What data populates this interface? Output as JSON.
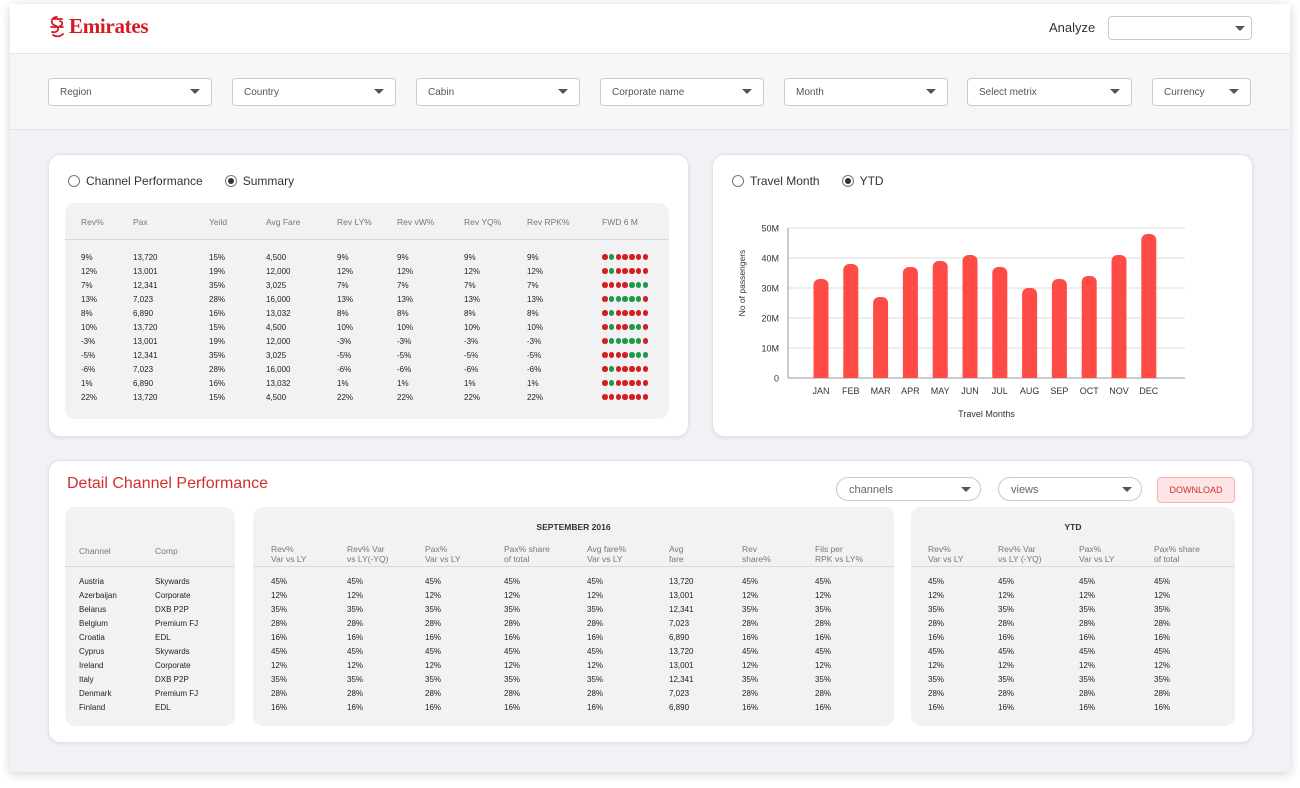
{
  "brand": {
    "name": "Emirates",
    "accent": "#d71920"
  },
  "header": {
    "analyze_label": "Analyze",
    "analyze_value": ""
  },
  "filters": [
    "Region",
    "Country",
    "Cabin",
    "Corporate name",
    "Month",
    "Select metrix",
    "Currency"
  ],
  "summary_card": {
    "radios": [
      {
        "label": "Channel Performance",
        "selected": false
      },
      {
        "label": "Summary",
        "selected": true
      }
    ],
    "columns": [
      "Rev%",
      "Pax",
      "Yeild",
      "Avg Fare",
      "Rev LY%",
      "Rev vW%",
      "Rev YQ%",
      "Rev RPK%",
      "FWD 6 M"
    ],
    "rows": [
      [
        "9%",
        "13,720",
        "15%",
        "4,500",
        "9%",
        "9%",
        "9%",
        "9%"
      ],
      [
        "12%",
        "13,001",
        "19%",
        "12,000",
        "12%",
        "12%",
        "12%",
        "12%"
      ],
      [
        "7%",
        "12,341",
        "35%",
        "3,025",
        "7%",
        "7%",
        "7%",
        "7%"
      ],
      [
        "13%",
        "7,023",
        "28%",
        "16,000",
        "13%",
        "13%",
        "13%",
        "13%"
      ],
      [
        "8%",
        "6,890",
        "16%",
        "13,032",
        "8%",
        "8%",
        "8%",
        "8%"
      ],
      [
        "10%",
        "13,720",
        "15%",
        "4,500",
        "10%",
        "10%",
        "10%",
        "10%"
      ],
      [
        "-3%",
        "13,001",
        "19%",
        "12,000",
        "-3%",
        "-3%",
        "-3%",
        "-3%"
      ],
      [
        "-5%",
        "12,341",
        "35%",
        "3,025",
        "-5%",
        "-5%",
        "-5%",
        "-5%"
      ],
      [
        "-6%",
        "7,023",
        "28%",
        "16,000",
        "-6%",
        "-6%",
        "-6%",
        "-6%"
      ],
      [
        "1%",
        "6,890",
        "16%",
        "13,032",
        "1%",
        "1%",
        "1%",
        "1%"
      ],
      [
        "22%",
        "13,720",
        "15%",
        "4,500",
        "22%",
        "22%",
        "22%",
        "22%"
      ]
    ],
    "fwd_dots": [
      [
        "r",
        "g",
        "r",
        "r",
        "r",
        "r",
        "r"
      ],
      [
        "r",
        "g",
        "r",
        "r",
        "r",
        "r",
        "r"
      ],
      [
        "r",
        "r",
        "r",
        "r",
        "g",
        "g",
        "g"
      ],
      [
        "r",
        "g",
        "g",
        "g",
        "g",
        "g",
        "r"
      ],
      [
        "r",
        "g",
        "r",
        "r",
        "r",
        "r",
        "r"
      ],
      [
        "r",
        "g",
        "r",
        "r",
        "g",
        "g",
        "r"
      ],
      [
        "r",
        "g",
        "g",
        "g",
        "g",
        "g",
        "r"
      ],
      [
        "r",
        "r",
        "r",
        "r",
        "g",
        "g",
        "g"
      ],
      [
        "r",
        "g",
        "r",
        "r",
        "r",
        "r",
        "r"
      ],
      [
        "r",
        "g",
        "r",
        "r",
        "r",
        "r",
        "r"
      ],
      [
        "r",
        "r",
        "r",
        "r",
        "r",
        "r",
        "r"
      ]
    ],
    "dot_colors": {
      "r": "#d32020",
      "g": "#1f9a4a"
    }
  },
  "chart_card": {
    "radios": [
      {
        "label": "Travel Month",
        "selected": false
      },
      {
        "label": "YTD",
        "selected": true
      }
    ]
  },
  "chart_data": {
    "type": "bar",
    "categories": [
      "JAN",
      "FEB",
      "MAR",
      "APR",
      "MAY",
      "JUN",
      "JUL",
      "AUG",
      "SEP",
      "OCT",
      "NOV",
      "DEC"
    ],
    "values": [
      33,
      38,
      27,
      37,
      39,
      41,
      37,
      30,
      33,
      34,
      41,
      48
    ],
    "xlabel": "Travel Months",
    "ylabel": "No of   passengers",
    "ylim": [
      0,
      50
    ],
    "yticks": [
      0,
      10,
      20,
      30,
      40,
      50
    ],
    "ytick_labels": [
      "0",
      "10M",
      "20M",
      "30M",
      "40M",
      "50M"
    ],
    "bar_color": "#ff4b45",
    "grid": true
  },
  "detail": {
    "title": "Detail Channel Performance",
    "channels_placeholder": "channels",
    "views_placeholder": "views",
    "download_label": "DOWNLOAD",
    "left_headers": [
      "Channel",
      "Comp"
    ],
    "left_rows": [
      [
        "Austria",
        "Skywards"
      ],
      [
        "Azerbaijan",
        "Corporate"
      ],
      [
        "Belarus",
        "DXB P2P"
      ],
      [
        "Belgium",
        "Premium FJ"
      ],
      [
        "Croatia",
        "EDL"
      ],
      [
        "Cyprus",
        "Skywards"
      ],
      [
        "Ireland",
        "Corporate"
      ],
      [
        "Italy",
        "DXB P2P"
      ],
      [
        "Denmark",
        "Premium FJ"
      ],
      [
        "Finland",
        "EDL"
      ]
    ],
    "mid_title": "SEPTEMBER 2016",
    "mid_headers": [
      [
        "Rev%",
        "Var vs LY"
      ],
      [
        "Rev% Var",
        "vs LY(-YQ)"
      ],
      [
        "Pax%",
        "Var vs LY"
      ],
      [
        "Pax% share",
        "of total"
      ],
      [
        "Avg fare%",
        "Var vs LY"
      ],
      [
        "Avg",
        "fare"
      ],
      [
        "Rev",
        "share%"
      ],
      [
        "Fils per",
        "RPK vs LY%"
      ]
    ],
    "mid_rows": [
      [
        "45%",
        "45%",
        "45%",
        "45%",
        "45%",
        "13,720",
        "45%",
        "45%"
      ],
      [
        "12%",
        "12%",
        "12%",
        "12%",
        "12%",
        "13,001",
        "12%",
        "12%"
      ],
      [
        "35%",
        "35%",
        "35%",
        "35%",
        "35%",
        "12,341",
        "35%",
        "35%"
      ],
      [
        "28%",
        "28%",
        "28%",
        "28%",
        "28%",
        "7,023",
        "28%",
        "28%"
      ],
      [
        "16%",
        "16%",
        "16%",
        "16%",
        "16%",
        "6,890",
        "16%",
        "16%"
      ],
      [
        "45%",
        "45%",
        "45%",
        "45%",
        "45%",
        "13,720",
        "45%",
        "45%"
      ],
      [
        "12%",
        "12%",
        "12%",
        "12%",
        "12%",
        "13,001",
        "12%",
        "12%"
      ],
      [
        "35%",
        "35%",
        "35%",
        "35%",
        "35%",
        "12,341",
        "35%",
        "35%"
      ],
      [
        "28%",
        "28%",
        "28%",
        "28%",
        "28%",
        "7,023",
        "28%",
        "28%"
      ],
      [
        "16%",
        "16%",
        "16%",
        "16%",
        "16%",
        "6,890",
        "16%",
        "16%"
      ]
    ],
    "ytd_title": "YTD",
    "ytd_headers": [
      [
        "Rev%",
        "Var vs LY"
      ],
      [
        "Rev% Var",
        "vs LY (-YQ)"
      ],
      [
        "Pax%",
        "Var vs LY"
      ],
      [
        "Pax% share",
        "of total"
      ]
    ],
    "ytd_rows": [
      [
        "45%",
        "45%",
        "45%",
        "45%"
      ],
      [
        "12%",
        "12%",
        "12%",
        "12%"
      ],
      [
        "35%",
        "35%",
        "35%",
        "35%"
      ],
      [
        "28%",
        "28%",
        "28%",
        "28%"
      ],
      [
        "16%",
        "16%",
        "16%",
        "16%"
      ],
      [
        "45%",
        "45%",
        "45%",
        "45%"
      ],
      [
        "12%",
        "12%",
        "12%",
        "12%"
      ],
      [
        "35%",
        "35%",
        "35%",
        "35%"
      ],
      [
        "28%",
        "28%",
        "28%",
        "28%"
      ],
      [
        "16%",
        "16%",
        "16%",
        "16%"
      ]
    ]
  }
}
